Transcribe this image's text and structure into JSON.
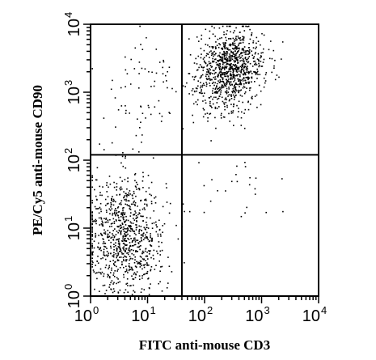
{
  "chart_data": {
    "type": "scatter",
    "title": "",
    "xlabel": "FITC anti-mouse CD3",
    "ylabel": "PE/Cy5 anti-mouse CD90",
    "x_scale": "log",
    "y_scale": "log",
    "xlim": [
      1,
      10000
    ],
    "ylim": [
      1,
      10000
    ],
    "x_ticks": [
      {
        "base": "10",
        "exp": "0"
      },
      {
        "base": "10",
        "exp": "1"
      },
      {
        "base": "10",
        "exp": "2"
      },
      {
        "base": "10",
        "exp": "3"
      },
      {
        "base": "10",
        "exp": "4"
      }
    ],
    "y_ticks": [
      {
        "base": "10",
        "exp": "0"
      },
      {
        "base": "10",
        "exp": "1"
      },
      {
        "base": "10",
        "exp": "2"
      },
      {
        "base": "10",
        "exp": "3"
      },
      {
        "base": "10",
        "exp": "4"
      }
    ],
    "grid": false,
    "legend": "none",
    "gates": {
      "x": 40,
      "y": 120
    },
    "point_color": "#000000",
    "populations": [
      {
        "quadrant": "lower-left",
        "center": [
          4,
          8
        ],
        "spread_log": [
          0.35,
          0.45
        ],
        "count": 900
      },
      {
        "quadrant": "upper-right",
        "center": [
          300,
          2500
        ],
        "spread_log": [
          0.28,
          0.25
        ],
        "count": 820
      },
      {
        "quadrant": "upper-right",
        "center": [
          160,
          900
        ],
        "spread_log": [
          0.3,
          0.3
        ],
        "count": 160
      },
      {
        "quadrant": "upper-left",
        "center": [
          8,
          1100
        ],
        "spread_log": [
          0.4,
          0.45
        ],
        "count": 70
      },
      {
        "quadrant": "lower-right",
        "center": [
          200,
          40
        ],
        "spread_log": [
          0.4,
          0.3
        ],
        "count": 25
      }
    ]
  }
}
